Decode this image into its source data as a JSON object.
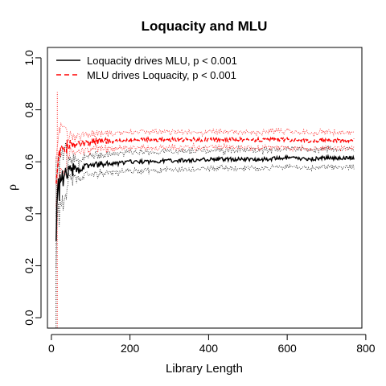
{
  "chart_data": {
    "type": "line",
    "title": "Loquacity and MLU",
    "xlabel": "Library Length",
    "ylabel": "ρ",
    "xlim": [
      -10,
      790
    ],
    "ylim": [
      -0.04,
      1.04
    ],
    "x_ticks": [
      0,
      200,
      400,
      600,
      800
    ],
    "y_ticks": [
      0.0,
      0.2,
      0.4,
      0.6,
      0.8,
      1.0
    ],
    "x_tick_labels": [
      "0",
      "200",
      "400",
      "600",
      "800"
    ],
    "y_tick_labels": [
      "0.0",
      "0.2",
      "0.4",
      "0.6",
      "0.8",
      "1.0"
    ],
    "grid": false,
    "legend_position": "top-left",
    "series": [
      {
        "name": "Loquacity drives MLU, p < 0.001",
        "color": "#000000",
        "line_style": "solid",
        "x": [
          12,
          15,
          18,
          20,
          22,
          25,
          28,
          30,
          35,
          40,
          45,
          50,
          60,
          70,
          80,
          100,
          125,
          150,
          175,
          200,
          250,
          300,
          350,
          400,
          450,
          500,
          550,
          600,
          650,
          700,
          750,
          770
        ],
        "y": [
          0.32,
          0.46,
          0.52,
          0.44,
          0.53,
          0.49,
          0.55,
          0.51,
          0.56,
          0.54,
          0.57,
          0.56,
          0.575,
          0.565,
          0.58,
          0.585,
          0.59,
          0.59,
          0.595,
          0.6,
          0.6,
          0.605,
          0.605,
          0.61,
          0.61,
          0.61,
          0.61,
          0.615,
          0.61,
          0.615,
          0.615,
          0.615
        ],
        "band_halfwidth": 0.03
      },
      {
        "name": "MLU drives Loquacity, p < 0.001",
        "color": "#ff0000",
        "line_style": "dashed",
        "x": [
          12,
          15,
          18,
          20,
          22,
          25,
          28,
          30,
          35,
          40,
          45,
          50,
          60,
          70,
          80,
          100,
          125,
          150,
          175,
          200,
          250,
          300,
          350,
          400,
          450,
          500,
          550,
          600,
          650,
          700,
          750,
          770
        ],
        "y": [
          0.5,
          0.58,
          0.6,
          0.62,
          0.61,
          0.65,
          0.63,
          0.66,
          0.64,
          0.67,
          0.65,
          0.68,
          0.66,
          0.67,
          0.67,
          0.675,
          0.68,
          0.68,
          0.68,
          0.685,
          0.685,
          0.685,
          0.685,
          0.685,
          0.685,
          0.685,
          0.685,
          0.685,
          0.68,
          0.685,
          0.68,
          0.685
        ],
        "band_halfwidth": 0.025
      }
    ]
  }
}
